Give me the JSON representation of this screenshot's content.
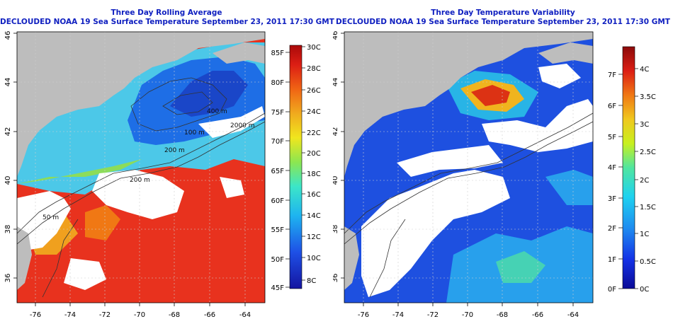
{
  "left_panel": {
    "title": "Three Day Rolling Average",
    "subtitle": "DECLOUDED NOAA 19 Sea Surface Temperature September 23, 2011 17:30 GMT",
    "x_ticks": [
      "-76",
      "-74",
      "-72",
      "-70",
      "-68",
      "-66",
      "-64"
    ],
    "y_ticks": [
      "36",
      "38",
      "40",
      "42",
      "44",
      "46"
    ],
    "contour_labels": [
      "400 m",
      "2000 m",
      "100 m",
      "200 m",
      "200 m",
      "50 m"
    ],
    "colorbar_fahrenheit": [
      "85F",
      "80F",
      "75F",
      "70F",
      "65F",
      "60F",
      "55F",
      "50F",
      "45F"
    ],
    "colorbar_celsius": [
      "30C",
      "28C",
      "26C",
      "24C",
      "22C",
      "20C",
      "18C",
      "16C",
      "14C",
      "12C",
      "10C",
      "8C"
    ]
  },
  "right_panel": {
    "title": "Three Day Temperature Variability",
    "subtitle": "DECLOUDED NOAA 19 Sea Surface Temperature September 23, 2011 17:30 GMT",
    "x_ticks": [
      "-76",
      "-74",
      "-72",
      "-70",
      "-68",
      "-66",
      "-64"
    ],
    "y_ticks": [
      "36",
      "38",
      "40",
      "42",
      "44",
      "46"
    ],
    "colorbar_fahrenheit": [
      "7F",
      "6F",
      "5F",
      "4F",
      "3F",
      "2F",
      "1F",
      "0F"
    ],
    "colorbar_celsius": [
      "4C",
      "3.5C",
      "3C",
      "2.5C",
      "2C",
      "1.5C",
      "1C",
      "0.5C",
      "0C"
    ]
  },
  "colors": {
    "title": "#1020c0",
    "land": "#bdbdbd",
    "cloud": "#ffffff",
    "warm": "#e8281e",
    "cold": "#1e4be0"
  }
}
